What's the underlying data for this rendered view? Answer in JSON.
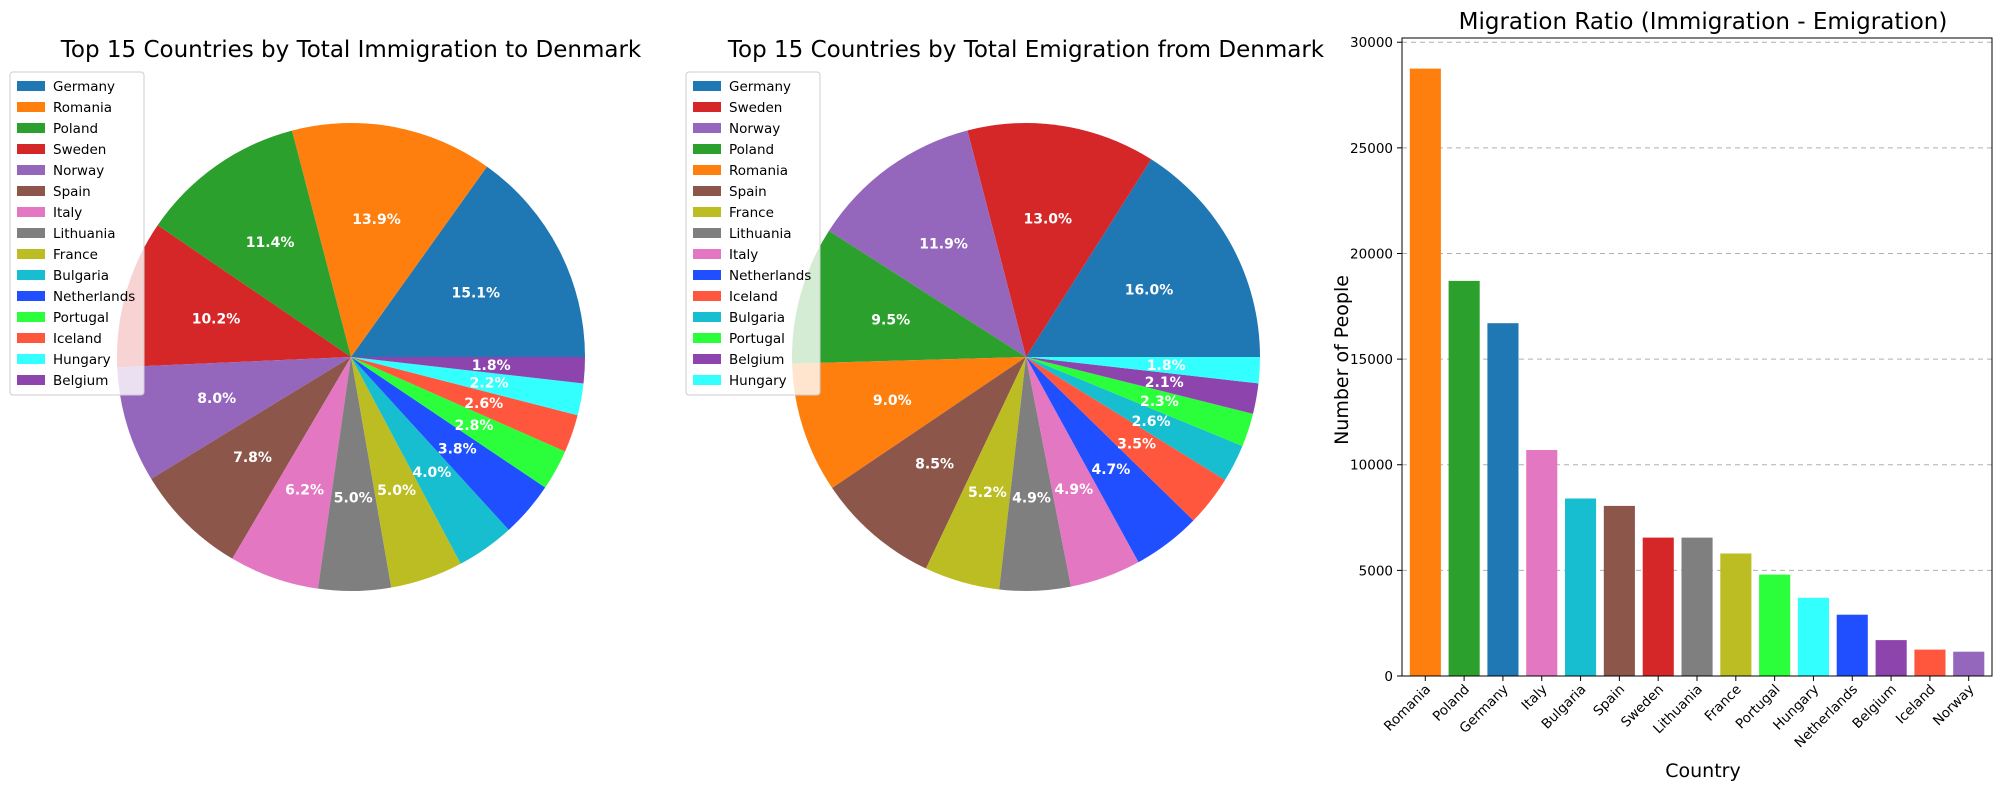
{
  "colors": {
    "Germany": "#1f77b4",
    "Romania": "#ff7f0e",
    "Poland": "#2ca02c",
    "Sweden": "#d62728",
    "Norway": "#9467bd",
    "Spain": "#8c564b",
    "Italy": "#e377c2",
    "Lithuania": "#7f7f7f",
    "France": "#bcbd22",
    "Bulgaria": "#17becf",
    "Netherlands": "#1f4fff",
    "Portugal": "#2bff3b",
    "Iceland": "#ff573d",
    "Hungary": "#33ffff",
    "Belgium": "#8e44ad"
  },
  "chart_data": [
    {
      "type": "pie",
      "title": "Top 15 Countries by Total Immigration to Denmark",
      "legend_position": "upper-left",
      "labels": [
        "Germany",
        "Romania",
        "Poland",
        "Sweden",
        "Norway",
        "Spain",
        "Italy",
        "Lithuania",
        "France",
        "Bulgaria",
        "Netherlands",
        "Portugal",
        "Iceland",
        "Hungary",
        "Belgium"
      ],
      "values": [
        15.1,
        13.9,
        11.4,
        10.2,
        8.0,
        7.8,
        6.2,
        5.0,
        5.0,
        4.0,
        3.8,
        2.8,
        2.6,
        2.2,
        1.8
      ],
      "value_labels": [
        "15.1%",
        "13.9%",
        "11.4%",
        "10.2%",
        "8.0%",
        "7.8%",
        "6.2%",
        "5.0%",
        "5.0%",
        "4.0%",
        "3.8%",
        "2.8%",
        "2.6%",
        "2.2%",
        "1.8%"
      ]
    },
    {
      "type": "pie",
      "title": "Top 15 Countries by Total Emigration from Denmark",
      "legend_position": "upper-left",
      "labels": [
        "Germany",
        "Sweden",
        "Norway",
        "Poland",
        "Romania",
        "Spain",
        "France",
        "Lithuania",
        "Italy",
        "Netherlands",
        "Iceland",
        "Bulgaria",
        "Portugal",
        "Belgium",
        "Hungary"
      ],
      "values": [
        16.0,
        13.0,
        11.9,
        9.5,
        9.0,
        8.5,
        5.2,
        4.9,
        4.9,
        4.7,
        3.5,
        2.6,
        2.3,
        2.1,
        1.8
      ],
      "value_labels": [
        "16.0%",
        "13.0%",
        "11.9%",
        "9.5%",
        "9.0%",
        "8.5%",
        "5.2%",
        "4.9%",
        "4.9%",
        "4.7%",
        "3.5%",
        "2.6%",
        "2.3%",
        "2.1%",
        "1.8%"
      ]
    },
    {
      "type": "bar",
      "title": "Migration Ratio (Immigration - Emigration)",
      "xlabel": "Country",
      "ylabel": "Number of People",
      "categories": [
        "Romania",
        "Poland",
        "Germany",
        "Italy",
        "Bulgaria",
        "Spain",
        "Sweden",
        "Lithuania",
        "France",
        "Portugal",
        "Hungary",
        "Netherlands",
        "Belgium",
        "Iceland",
        "Norway"
      ],
      "values": [
        28750,
        18700,
        16700,
        10700,
        8400,
        8050,
        6550,
        6550,
        5800,
        4800,
        3700,
        2900,
        1700,
        1250,
        1150
      ],
      "ylim": [
        0,
        30200
      ],
      "yticks": [
        0,
        5000,
        10000,
        15000,
        20000,
        25000,
        30000
      ],
      "ytick_labels": [
        "0",
        "5000",
        "10000",
        "15000",
        "20000",
        "25000",
        "30000"
      ],
      "grid": "y-dashed"
    }
  ]
}
